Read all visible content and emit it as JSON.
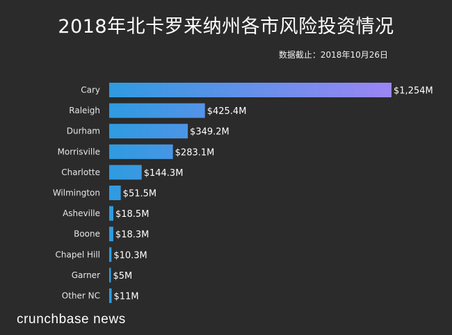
{
  "chart_data": {
    "type": "bar",
    "orientation": "horizontal",
    "title": "2018年北卡罗来纳州各市风险投资情况",
    "subtitle": "数据截止：2018年10月26日",
    "categories": [
      "Cary",
      "Raleigh",
      "Durham",
      "Morrisville",
      "Charlotte",
      "Wilmington",
      "Asheville",
      "Boone",
      "Chapel Hill",
      "Garner",
      "Other NC"
    ],
    "values": [
      1254,
      425.4,
      349.2,
      283.1,
      144.3,
      51.5,
      18.5,
      18.3,
      10.3,
      5,
      11
    ],
    "value_labels": [
      "$1,254M",
      "$425.4M",
      "$349.2M",
      "$283.1M",
      "$144.3M",
      "$51.5M",
      "$18.5M",
      "$18.3M",
      "$10.3M",
      "$5M",
      "$11M"
    ],
    "unit": "Million USD",
    "xlabel": "",
    "ylabel": "",
    "xlim": [
      0,
      1254
    ],
    "grid": false,
    "legend": "none"
  },
  "colors": {
    "background": "#2b2b2b",
    "bar_gradient_start": "#2e9be0",
    "bar_gradient_end": "#9b85f5",
    "text": "#ffffff"
  },
  "brand": "crunchbase news"
}
